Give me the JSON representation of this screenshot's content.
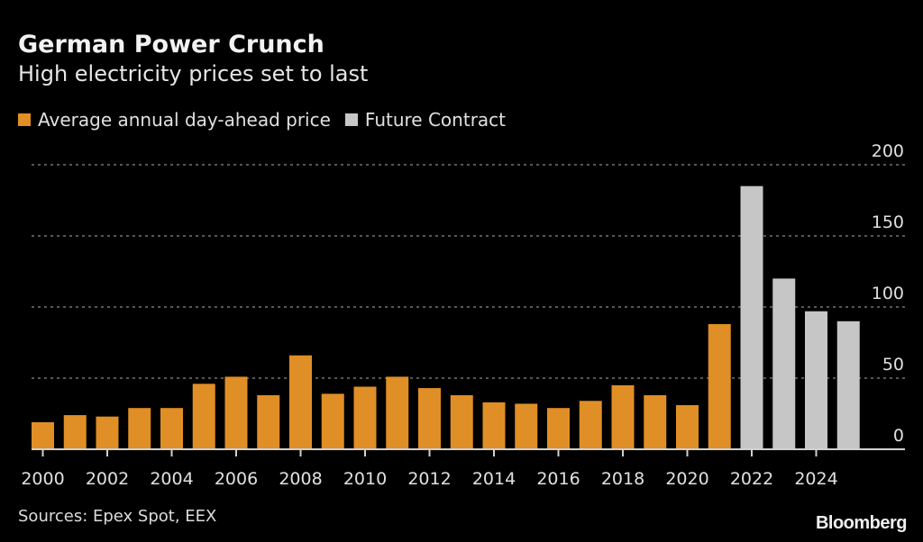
{
  "chart_data": {
    "type": "bar",
    "title": "German Power Crunch",
    "subtitle": "High electricity prices set to last",
    "source": "Sources: Epex Spot, EEX",
    "logo": "Bloomberg",
    "categories": [
      2000,
      2001,
      2002,
      2003,
      2004,
      2005,
      2006,
      2007,
      2008,
      2009,
      2010,
      2011,
      2012,
      2013,
      2014,
      2015,
      2016,
      2017,
      2018,
      2019,
      2020,
      2021,
      2022,
      2023,
      2024,
      2025
    ],
    "series": [
      {
        "name": "Average annual day-ahead price",
        "color": "#e08e26",
        "values": [
          19,
          24,
          23,
          29,
          29,
          46,
          51,
          38,
          66,
          39,
          44,
          51,
          43,
          38,
          33,
          32,
          29,
          34,
          45,
          38,
          31,
          88,
          null,
          null,
          null,
          null
        ]
      },
      {
        "name": "Future Contract",
        "color": "#c6c6c6",
        "values": [
          null,
          null,
          null,
          null,
          null,
          null,
          null,
          null,
          null,
          null,
          null,
          null,
          null,
          null,
          null,
          null,
          null,
          null,
          null,
          null,
          null,
          null,
          185,
          120,
          97,
          90
        ]
      }
    ],
    "x_tick_labels": [
      "2000",
      "2002",
      "2004",
      "2006",
      "2008",
      "2010",
      "2012",
      "2014",
      "2016",
      "2018",
      "2020",
      "2022",
      "2024"
    ],
    "y_ticks": [
      0,
      50,
      100,
      150,
      200
    ],
    "ylim": [
      0,
      200
    ],
    "y_axis_side": "right",
    "grid": "horizontal dotted",
    "legend_position": "top-left"
  }
}
